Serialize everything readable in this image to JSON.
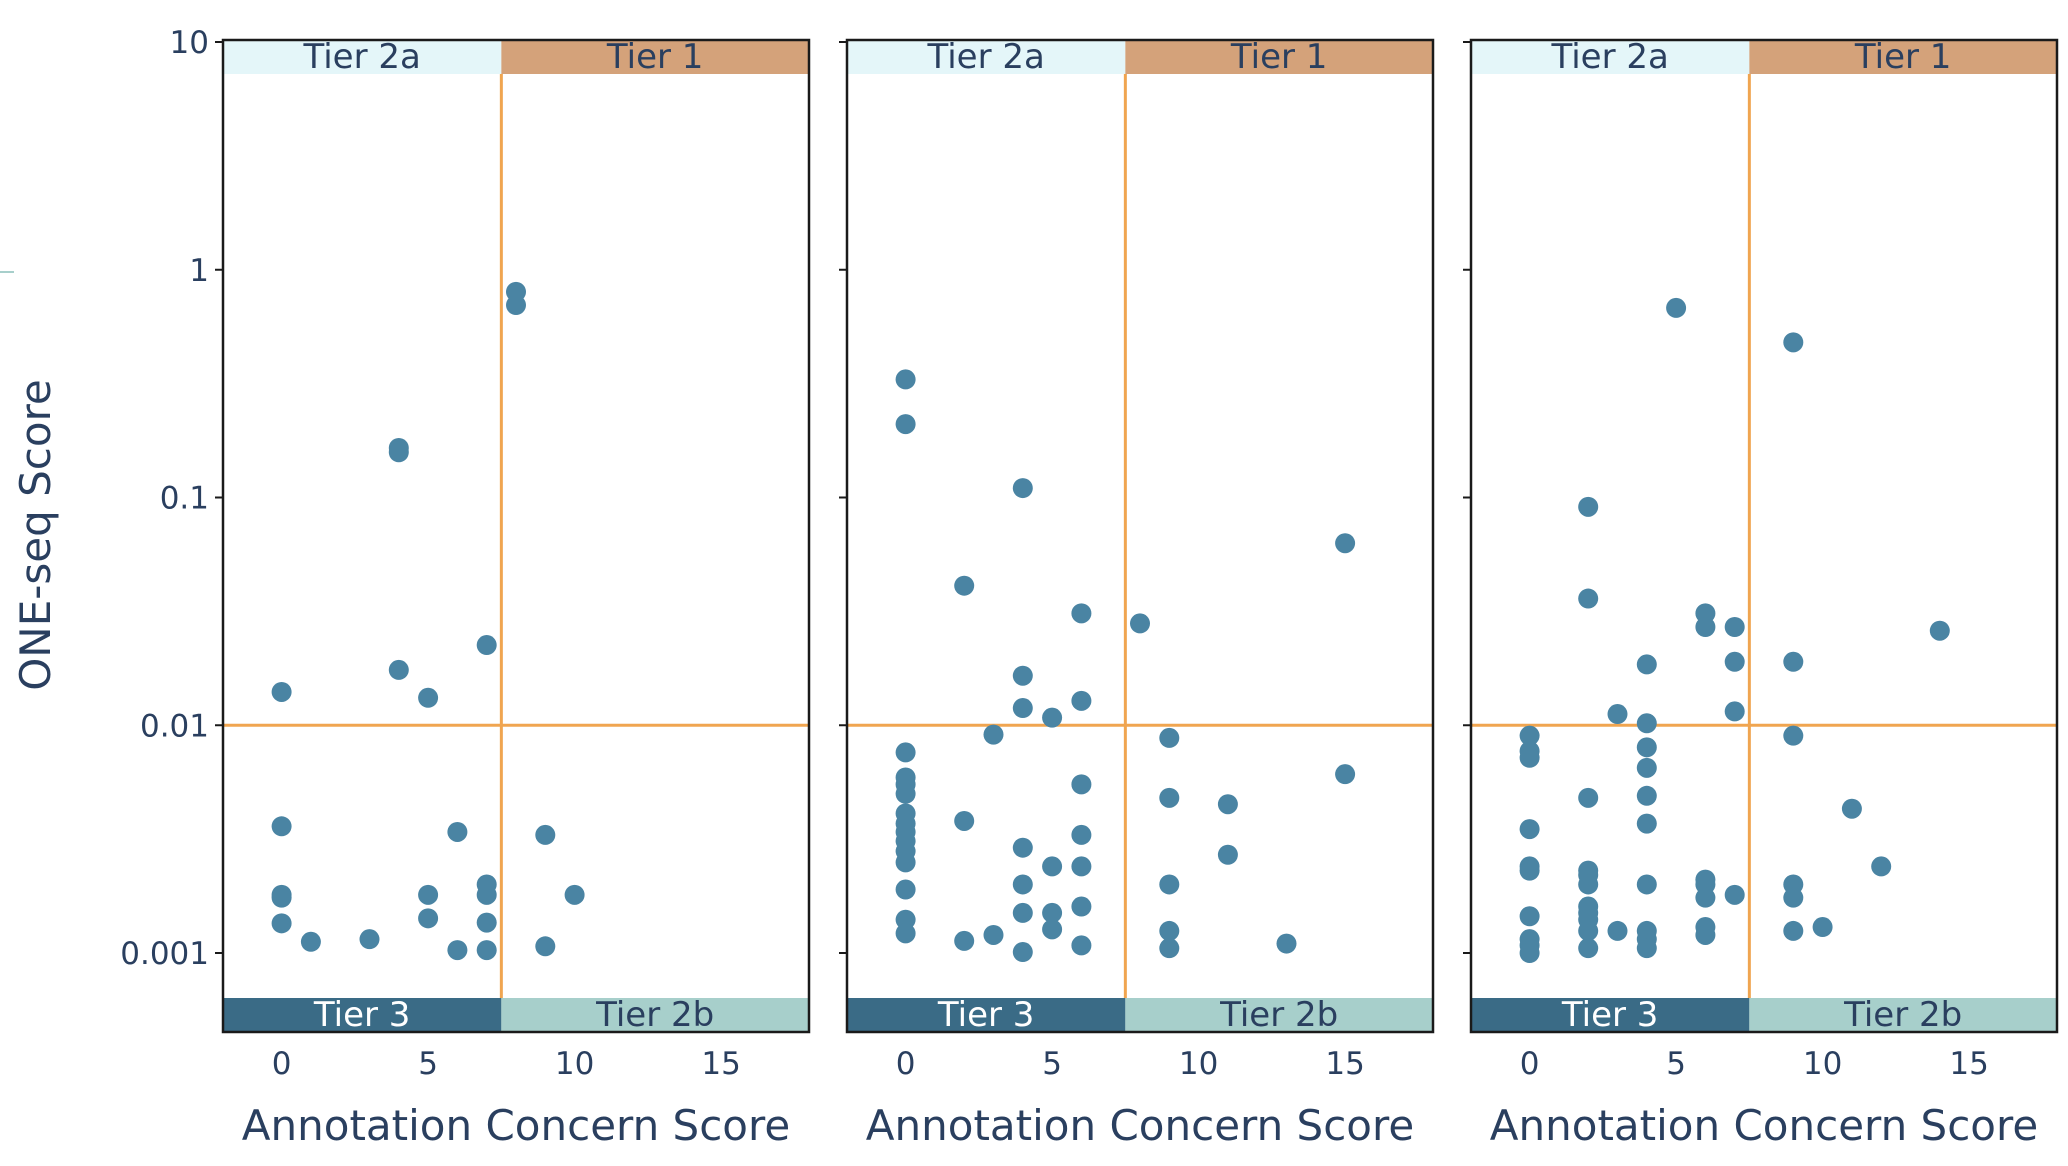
{
  "chart_data": {
    "type": "scatter",
    "ylabel": "ONE-seq Score",
    "xlabel": "Annotation Concern Score",
    "y_scale": "log",
    "ylim": [
      0.0005,
      10
    ],
    "xlim": [
      -2,
      18
    ],
    "x_ticks": [
      0,
      5,
      10,
      15
    ],
    "x_tick_labels": [
      "0",
      "5",
      "10",
      "15"
    ],
    "y_ticks": [
      10,
      1,
      0.1,
      0.01,
      0.001
    ],
    "y_tick_labels": [
      "10",
      "1",
      "0.1",
      "0.01",
      "0.001"
    ],
    "thresholds": {
      "x": 7.5,
      "y": 0.01
    },
    "colors": {
      "marker": "#4a84a3",
      "threshold_line": "#f0a550",
      "tier1": "#d4a27a",
      "tier2a": "#e4f6f9",
      "tier3": "#3a6b86",
      "tier2b": "#a7cfcb",
      "text": "#2a3f5f"
    },
    "tiers": {
      "tier2a": "Tier 2a",
      "tier1": "Tier 1",
      "tier3": "Tier 3",
      "tier2b": "Tier 2b"
    },
    "panels": [
      {
        "xlabel": "Annotation Concern Score",
        "points": [
          [
            8,
            0.8
          ],
          [
            8,
            0.7
          ],
          [
            4,
            0.165
          ],
          [
            4,
            0.158
          ],
          [
            7,
            0.0225
          ],
          [
            4,
            0.0175
          ],
          [
            0,
            0.014
          ],
          [
            5,
            0.0132
          ],
          [
            0,
            0.0036
          ],
          [
            6,
            0.0034
          ],
          [
            9,
            0.0033
          ],
          [
            0,
            0.0018
          ],
          [
            0,
            0.00175
          ],
          [
            5,
            0.0018
          ],
          [
            7,
            0.002
          ],
          [
            7,
            0.0018
          ],
          [
            10,
            0.0018
          ],
          [
            5,
            0.00142
          ],
          [
            0,
            0.00135
          ],
          [
            7,
            0.00136
          ],
          [
            1,
            0.00112
          ],
          [
            3,
            0.00115
          ],
          [
            6,
            0.00103
          ],
          [
            7,
            0.00103
          ],
          [
            9,
            0.00107
          ]
        ]
      },
      {
        "xlabel": "Annotation Concern Score",
        "points": [
          [
            0,
            0.33
          ],
          [
            0,
            0.21
          ],
          [
            4,
            0.11
          ],
          [
            15,
            0.063
          ],
          [
            2,
            0.041
          ],
          [
            6,
            0.031
          ],
          [
            8,
            0.028
          ],
          [
            4,
            0.0165
          ],
          [
            6,
            0.0128
          ],
          [
            4,
            0.0119
          ],
          [
            5,
            0.0108
          ],
          [
            3,
            0.0091
          ],
          [
            9,
            0.0088
          ],
          [
            0,
            0.0076
          ],
          [
            0,
            0.0059
          ],
          [
            0,
            0.0055
          ],
          [
            0,
            0.005
          ],
          [
            6,
            0.0055
          ],
          [
            15,
            0.0061
          ],
          [
            9,
            0.0048
          ],
          [
            11,
            0.0045
          ],
          [
            0,
            0.0041
          ],
          [
            0,
            0.0037
          ],
          [
            2,
            0.0038
          ],
          [
            0,
            0.0034
          ],
          [
            0,
            0.0031
          ],
          [
            6,
            0.0033
          ],
          [
            4,
            0.0029
          ],
          [
            0,
            0.0028
          ],
          [
            11,
            0.0027
          ],
          [
            0,
            0.0025
          ],
          [
            5,
            0.0024
          ],
          [
            6,
            0.0024
          ],
          [
            4,
            0.002
          ],
          [
            0,
            0.0019
          ],
          [
            9,
            0.002
          ],
          [
            4,
            0.0015
          ],
          [
            5,
            0.0015
          ],
          [
            6,
            0.0016
          ],
          [
            0,
            0.0014
          ],
          [
            5,
            0.00127
          ],
          [
            9,
            0.00125
          ],
          [
            0,
            0.00122
          ],
          [
            2,
            0.00113
          ],
          [
            3,
            0.0012
          ],
          [
            6,
            0.00108
          ],
          [
            9,
            0.00105
          ],
          [
            13,
            0.0011
          ],
          [
            4,
            0.00101
          ]
        ]
      },
      {
        "xlabel": "Annotation Concern Score",
        "points": [
          [
            5,
            0.68
          ],
          [
            9,
            0.48
          ],
          [
            2,
            0.091
          ],
          [
            2,
            0.036
          ],
          [
            6,
            0.031
          ],
          [
            6,
            0.027
          ],
          [
            7,
            0.027
          ],
          [
            14,
            0.026
          ],
          [
            4,
            0.0185
          ],
          [
            7,
            0.019
          ],
          [
            9,
            0.019
          ],
          [
            3,
            0.0112
          ],
          [
            7,
            0.0115
          ],
          [
            4,
            0.0102
          ],
          [
            0,
            0.009
          ],
          [
            9,
            0.009
          ],
          [
            0,
            0.0077
          ],
          [
            0,
            0.0072
          ],
          [
            4,
            0.008
          ],
          [
            4,
            0.0065
          ],
          [
            2,
            0.0048
          ],
          [
            4,
            0.0049
          ],
          [
            11,
            0.0043
          ],
          [
            4,
            0.0037
          ],
          [
            0,
            0.0035
          ],
          [
            0,
            0.0024
          ],
          [
            0,
            0.0023
          ],
          [
            2,
            0.0023
          ],
          [
            2,
            0.0022
          ],
          [
            2,
            0.002
          ],
          [
            6,
            0.0021
          ],
          [
            6,
            0.002
          ],
          [
            12,
            0.0024
          ],
          [
            4,
            0.002
          ],
          [
            9,
            0.002
          ],
          [
            6,
            0.00175
          ],
          [
            7,
            0.0018
          ],
          [
            9,
            0.00175
          ],
          [
            2,
            0.0016
          ],
          [
            2,
            0.0015
          ],
          [
            0,
            0.00145
          ],
          [
            2,
            0.0014
          ],
          [
            4,
            0.00125
          ],
          [
            6,
            0.0013
          ],
          [
            2,
            0.00125
          ],
          [
            3,
            0.00125
          ],
          [
            6,
            0.0012
          ],
          [
            9,
            0.00125
          ],
          [
            10,
            0.0013
          ],
          [
            4,
            0.00115
          ],
          [
            0,
            0.00115
          ],
          [
            0,
            0.00108
          ],
          [
            4,
            0.00105
          ],
          [
            2,
            0.00105
          ],
          [
            0,
            0.001
          ]
        ]
      }
    ]
  }
}
